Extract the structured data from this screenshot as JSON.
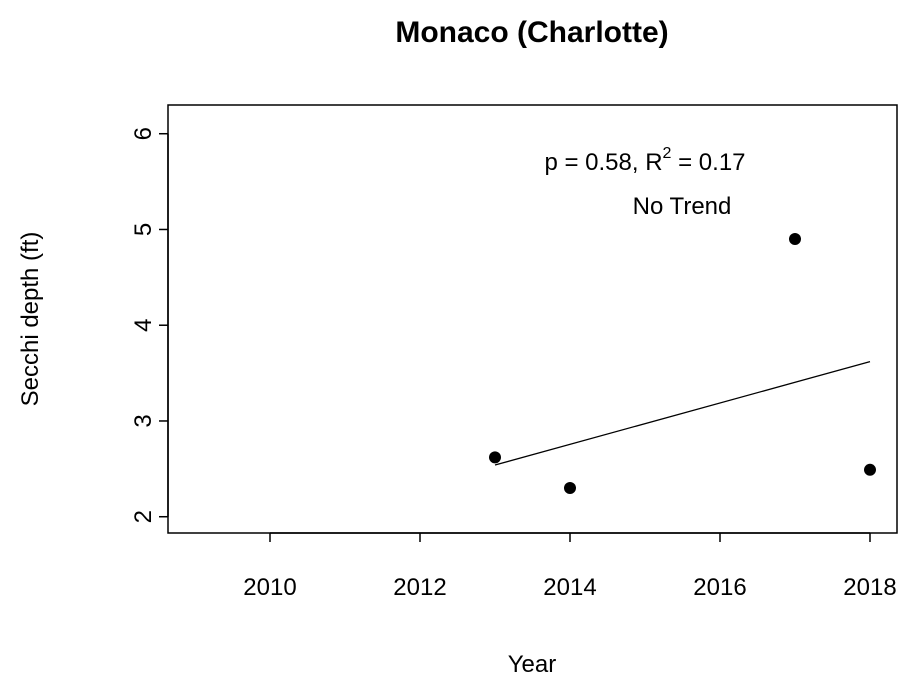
{
  "chart_data": {
    "type": "scatter",
    "title": "Monaco (Charlotte)",
    "xlabel": "Year",
    "ylabel": "Secchi depth (ft)",
    "x": [
      2013,
      2014,
      2017,
      2018
    ],
    "values": [
      2.62,
      2.3,
      4.9,
      2.49
    ],
    "color": "#000000",
    "trend": {
      "x": [
        2013,
        2018
      ],
      "values": [
        2.54,
        3.62
      ]
    },
    "annotation": [
      "p = 0.58, R",
      "2",
      " = 0.17"
    ],
    "annotation2": "No Trend",
    "xlim": [
      2008.64,
      2018.36
    ],
    "xticks": [
      2010,
      2012,
      2014,
      2016,
      2018
    ],
    "ylim": [
      1.83,
      6.3
    ],
    "yticks": [
      2,
      3,
      4,
      5,
      6
    ]
  }
}
